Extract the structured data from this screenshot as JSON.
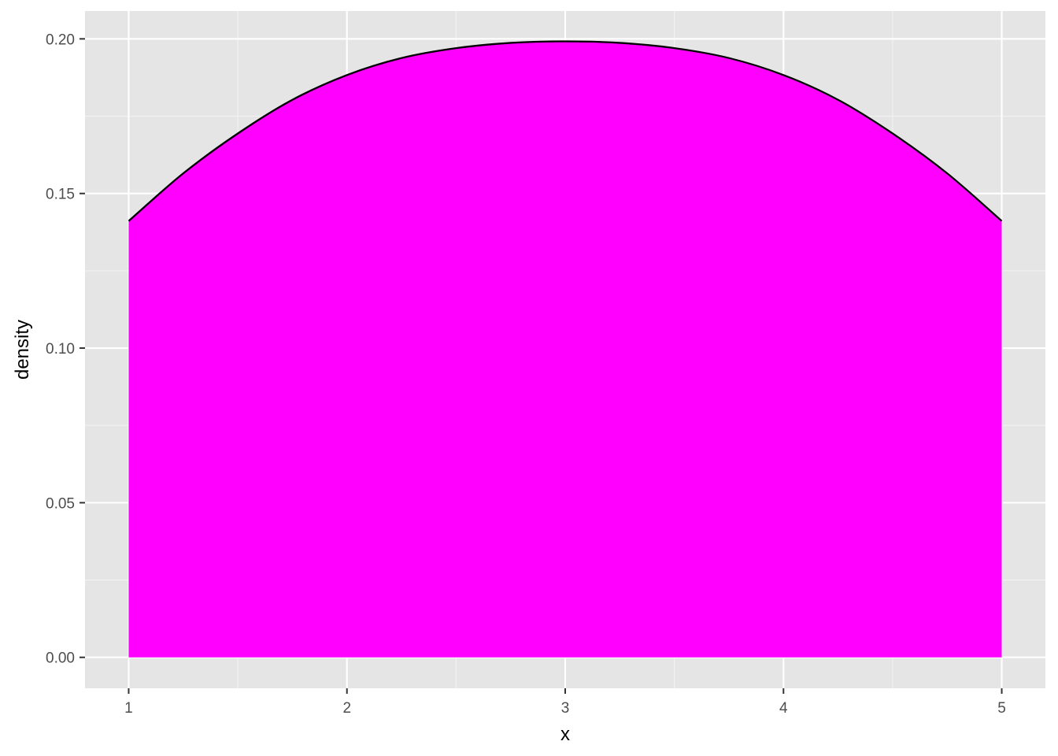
{
  "chart_data": {
    "type": "area",
    "title": "",
    "xlabel": "x",
    "ylabel": "density",
    "xlim": [
      0.8,
      5.2
    ],
    "ylim": [
      -0.01,
      0.209
    ],
    "xticks": [
      1,
      2,
      3,
      4,
      5
    ],
    "xtick_labels": [
      "1",
      "2",
      "3",
      "4",
      "5"
    ],
    "yticks": [
      0.0,
      0.05,
      0.1,
      0.15,
      0.2
    ],
    "ytick_labels": [
      "0.00",
      "0.05",
      "0.10",
      "0.15",
      "0.20"
    ],
    "grid": true,
    "series": [
      {
        "name": "density",
        "x": [
          1.0,
          1.25,
          1.5,
          1.75,
          2.0,
          2.25,
          2.5,
          2.75,
          3.0,
          3.25,
          3.5,
          3.75,
          4.0,
          4.25,
          4.5,
          4.75,
          5.0
        ],
        "y": [
          0.1411,
          0.1565,
          0.1694,
          0.1803,
          0.1883,
          0.1938,
          0.197,
          0.1987,
          0.1992,
          0.1987,
          0.197,
          0.1938,
          0.1883,
          0.1803,
          0.1694,
          0.1565,
          0.1411
        ]
      }
    ],
    "colors": {
      "fill": "#ff00ff",
      "line": "#000000",
      "panel": "#e5e5e5",
      "grid_major": "#ffffff",
      "grid_minor": "#f2f2f2",
      "tick": "#333333"
    }
  }
}
